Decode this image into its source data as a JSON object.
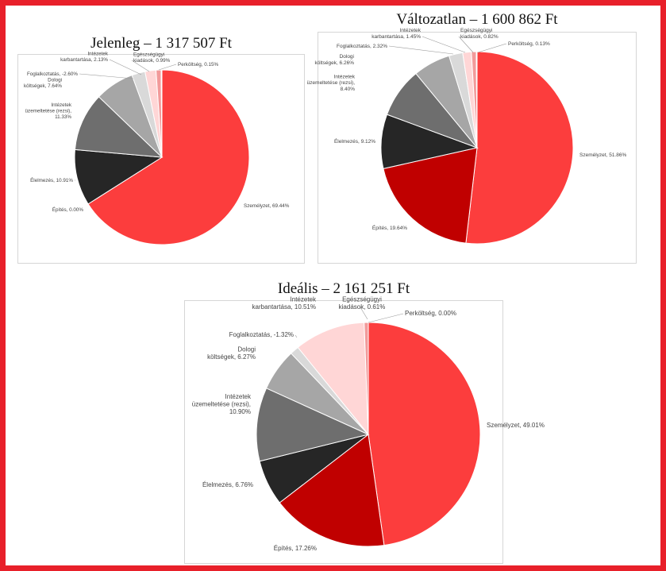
{
  "colors": {
    "frame": "#e8202a",
    "szemelyzet": "#fc3d3d",
    "epites": "#c00000",
    "elelmezes": "#262626",
    "rezsi": "#6e6e6e",
    "dologi": "#a6a6a6",
    "foglalkoztatas": "#d9d9d9",
    "karbantartas": "#ffd6d6",
    "egeszsegugyi": "#f29a9a",
    "perkoltseg": "#e07a7a"
  },
  "chart_data": [
    {
      "type": "pie",
      "title": "Jelenleg – 1 317 507 Ft",
      "slices": [
        {
          "label": "Személyzet, 69.44%",
          "value": 69.44,
          "color_key": "szemelyzet"
        },
        {
          "label": "Építés, 0.00%",
          "value": 0.0,
          "color_key": "epites"
        },
        {
          "label": "Élelmezés, 10.91%",
          "value": 10.91,
          "color_key": "elelmezes"
        },
        {
          "label": "Intézetek üzemeltetése (rezsi), 11.33%",
          "value": 11.33,
          "color_key": "rezsi"
        },
        {
          "label": "Dologi költségek, 7.64%",
          "value": 7.64,
          "color_key": "dologi"
        },
        {
          "label": "Foglalkoztatás, -2.60%",
          "value": 2.6,
          "color_key": "foglalkoztatas"
        },
        {
          "label": "Intézetek karbantartása, 2.13%",
          "value": 2.13,
          "color_key": "karbantartas"
        },
        {
          "label": "Egészségügyi kiadások, 0.99%",
          "value": 0.99,
          "color_key": "egeszsegugyi"
        },
        {
          "label": "Perköltség, 0.15%",
          "value": 0.15,
          "color_key": "perkoltseg"
        }
      ]
    },
    {
      "type": "pie",
      "title": "Változatlan – 1 600 862 Ft",
      "slices": [
        {
          "label": "Személyzet, 51.86%",
          "value": 51.86,
          "color_key": "szemelyzet"
        },
        {
          "label": "Építés, 19.64%",
          "value": 19.64,
          "color_key": "epites"
        },
        {
          "label": "Élelmezés, 9.12%",
          "value": 9.12,
          "color_key": "elelmezes"
        },
        {
          "label": "Intézetek üzemeltetése (rezsi), 8.40%",
          "value": 8.4,
          "color_key": "rezsi"
        },
        {
          "label": "Dologi költségek, 6.26%",
          "value": 6.26,
          "color_key": "dologi"
        },
        {
          "label": "Foglalkoztatás, 2.32%",
          "value": 2.32,
          "color_key": "foglalkoztatas"
        },
        {
          "label": "Intézetek karbantartása, 1.45%",
          "value": 1.45,
          "color_key": "karbantartas"
        },
        {
          "label": "Egészségügyi kiadások, 0.82%",
          "value": 0.82,
          "color_key": "egeszsegugyi"
        },
        {
          "label": "Perköltség, 0.13%",
          "value": 0.13,
          "color_key": "perkoltseg"
        }
      ]
    },
    {
      "type": "pie",
      "title": "Ideális – 2 161 251 Ft",
      "slices": [
        {
          "label": "Személyzet, 49.01%",
          "value": 49.01,
          "color_key": "szemelyzet"
        },
        {
          "label": "Építés, 17.26%",
          "value": 17.26,
          "color_key": "epites"
        },
        {
          "label": "Élelmezés, 6.76%",
          "value": 6.76,
          "color_key": "elelmezes"
        },
        {
          "label": "Intézetek üzemeltetése (rezsi), 10.90%",
          "value": 10.9,
          "color_key": "rezsi"
        },
        {
          "label": "Dologi költségek, 6.27%",
          "value": 6.27,
          "color_key": "dologi"
        },
        {
          "label": "Foglalkoztatás, -1.32%",
          "value": 1.32,
          "color_key": "foglalkoztatas"
        },
        {
          "label": "Intézetek karbantartása, 10.51%",
          "value": 10.51,
          "color_key": "karbantartas"
        },
        {
          "label": "Egészségügyi kiadások, 0.61%",
          "value": 0.61,
          "color_key": "egeszsegugyi"
        },
        {
          "label": "Perköltség, 0.00%",
          "value": 0.0,
          "color_key": "perkoltseg"
        }
      ]
    }
  ]
}
